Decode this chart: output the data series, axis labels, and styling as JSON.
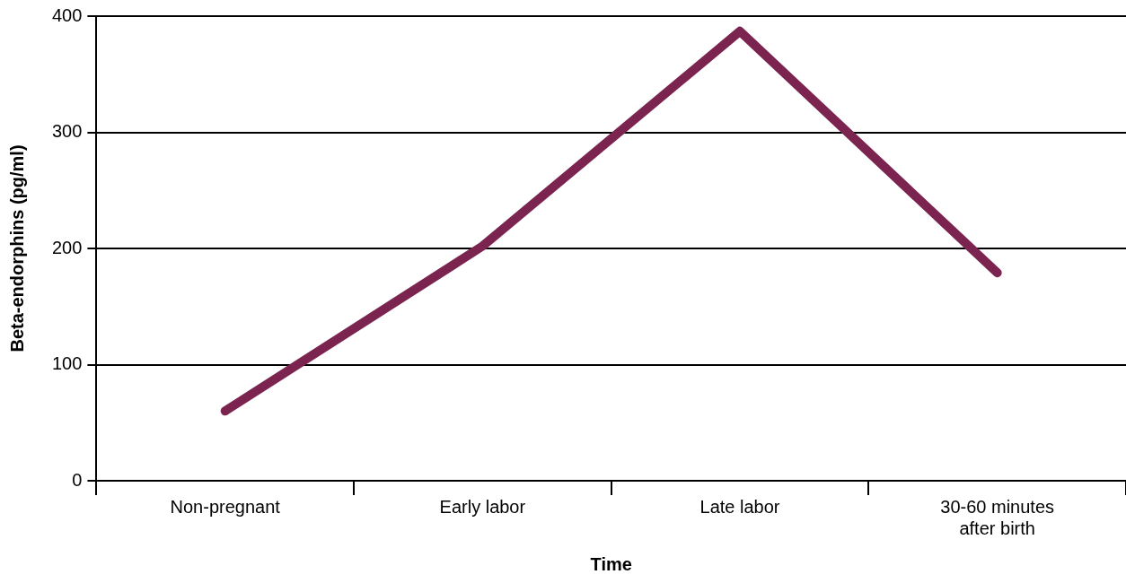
{
  "chart_data": {
    "type": "line",
    "xlabel": "Time",
    "ylabel": "Beta-endorphins (pg/ml)",
    "categories": [
      "Non-pregnant",
      "Early labor",
      "Late labor",
      "30-60 minutes after birth"
    ],
    "series": [
      {
        "color": "#7b2450",
        "values": [
          60,
          202,
          387,
          179
        ]
      }
    ],
    "ylim": [
      0,
      400
    ],
    "yticks": [
      0,
      100,
      200,
      300,
      400
    ],
    "grid": "y",
    "legend": false,
    "marker": "none",
    "line_style": "solid"
  }
}
